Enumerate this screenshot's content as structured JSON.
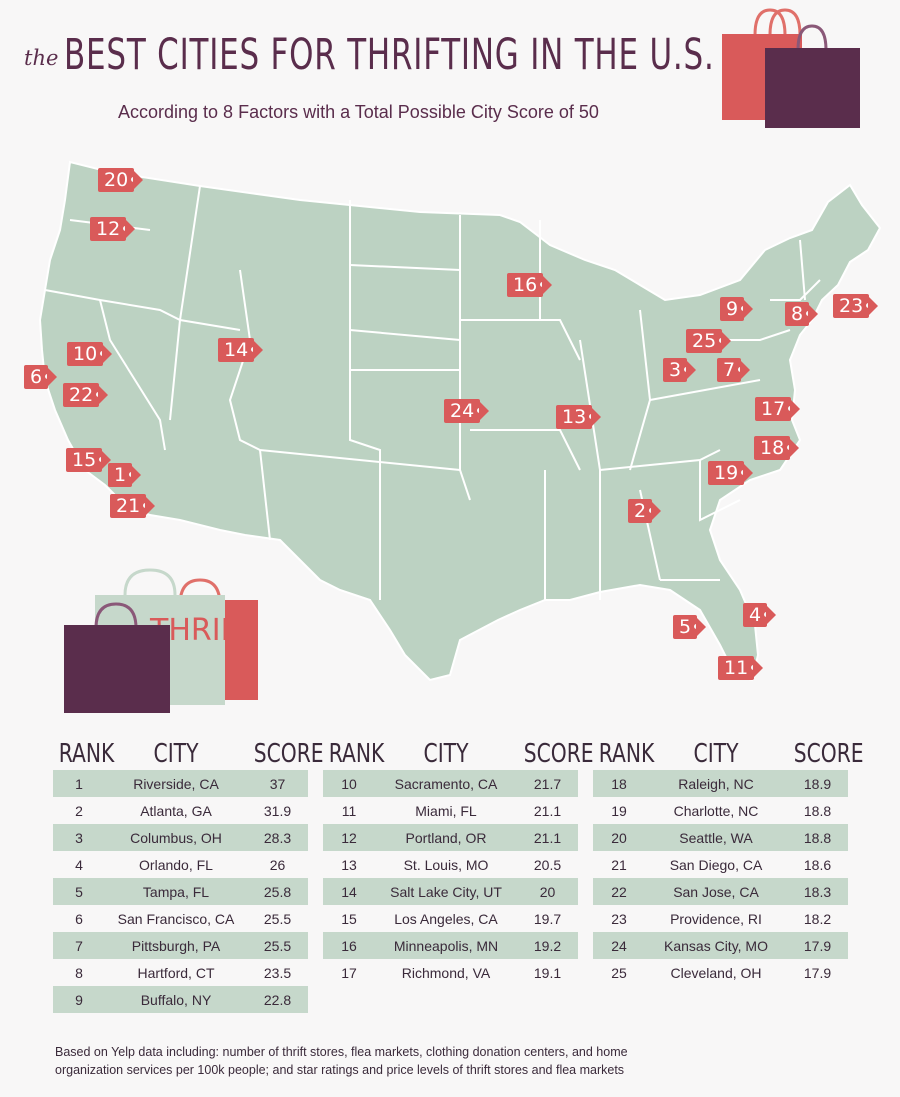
{
  "header": {
    "title_the": "the",
    "title_main": "BEST CITIES FOR THRIFTING IN THE U.S.",
    "subtitle": "According to 8 Factors with a Total Possible City Score of 50"
  },
  "bag_text": "THRIFT",
  "colors": {
    "map_fill": "#bcd2c2",
    "tag": "#d95a5a",
    "row_alt": "#c6d8cb",
    "plum": "#5a2d4c"
  },
  "map_tags": [
    "20",
    "12",
    "16",
    "9",
    "8",
    "23",
    "10",
    "14",
    "25",
    "6",
    "3",
    "7",
    "22",
    "24",
    "13",
    "17",
    "15",
    "1",
    "18",
    "19",
    "21",
    "2",
    "4",
    "5",
    "11"
  ],
  "table": {
    "headers": {
      "rank": "RANK",
      "city": "CITY",
      "score": "SCORE"
    },
    "rows": [
      {
        "rank": "1",
        "city": "Riverside, CA",
        "score": "37"
      },
      {
        "rank": "2",
        "city": "Atlanta, GA",
        "score": "31.9"
      },
      {
        "rank": "3",
        "city": "Columbus, OH",
        "score": "28.3"
      },
      {
        "rank": "4",
        "city": "Orlando, FL",
        "score": "26"
      },
      {
        "rank": "5",
        "city": "Tampa, FL",
        "score": "25.8"
      },
      {
        "rank": "6",
        "city": "San Francisco, CA",
        "score": "25.5"
      },
      {
        "rank": "7",
        "city": "Pittsburgh, PA",
        "score": "25.5"
      },
      {
        "rank": "8",
        "city": "Hartford, CT",
        "score": "23.5"
      },
      {
        "rank": "9",
        "city": "Buffalo, NY",
        "score": "22.8"
      },
      {
        "rank": "10",
        "city": "Sacramento, CA",
        "score": "21.7"
      },
      {
        "rank": "11",
        "city": "Miami, FL",
        "score": "21.1"
      },
      {
        "rank": "12",
        "city": "Portland, OR",
        "score": "21.1"
      },
      {
        "rank": "13",
        "city": "St. Louis, MO",
        "score": "20.5"
      },
      {
        "rank": "14",
        "city": "Salt Lake City, UT",
        "score": "20"
      },
      {
        "rank": "15",
        "city": "Los Angeles, CA",
        "score": "19.7"
      },
      {
        "rank": "16",
        "city": "Minneapolis, MN",
        "score": "19.2"
      },
      {
        "rank": "17",
        "city": "Richmond, VA",
        "score": "19.1"
      },
      {
        "rank": "18",
        "city": "Raleigh, NC",
        "score": "18.9"
      },
      {
        "rank": "19",
        "city": "Charlotte, NC",
        "score": "18.8"
      },
      {
        "rank": "20",
        "city": "Seattle, WA",
        "score": "18.8"
      },
      {
        "rank": "21",
        "city": "San Diego, CA",
        "score": "18.6"
      },
      {
        "rank": "22",
        "city": "San Jose, CA",
        "score": "18.3"
      },
      {
        "rank": "23",
        "city": "Providence, RI",
        "score": "18.2"
      },
      {
        "rank": "24",
        "city": "Kansas City, MO",
        "score": "17.9"
      },
      {
        "rank": "25",
        "city": "Cleveland, OH",
        "score": "17.9"
      }
    ]
  },
  "footer": {
    "line1": "Based on Yelp data including: number of thrift stores, flea markets, clothing donation centers, and home",
    "line2": "organization services per 100k people; and star ratings and price levels of thrift stores and flea markets"
  }
}
